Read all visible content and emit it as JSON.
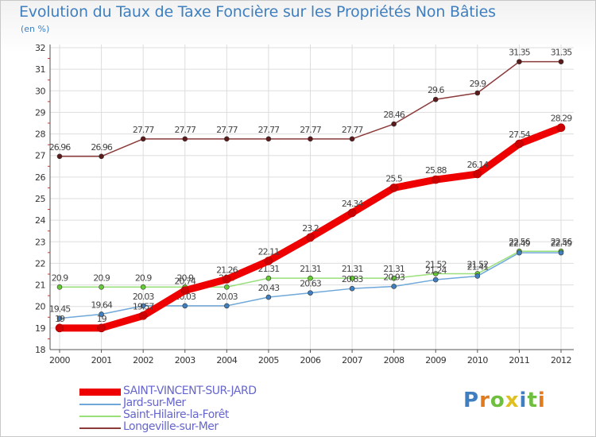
{
  "title": "Evolution du Taux de Taxe Foncière sur les Propriétés Non Bâties",
  "unit_label": "(en %)",
  "logo_text": "Proxiti",
  "colors": {
    "title": "#3f7fbf",
    "grid": "#dddddd",
    "axis": "#555555"
  },
  "chart_data": {
    "type": "line",
    "title": "Evolution du Taux de Taxe Foncière sur les Propriétés Non Bâties",
    "ylabel": "(en %)",
    "xlabel": "",
    "ylim": [
      18,
      32
    ],
    "yticks": [
      18,
      19,
      20,
      21,
      22,
      23,
      24,
      25,
      26,
      27,
      28,
      29,
      30,
      31,
      32
    ],
    "categories": [
      "2000",
      "2001",
      "2002",
      "2003",
      "2004",
      "2005",
      "2006",
      "2007",
      "2008",
      "2009",
      "2010",
      "2011",
      "2012"
    ],
    "legend_position": "bottom-left",
    "grid": true,
    "series": [
      {
        "name": "SAINT-VINCENT-SUR-JARD",
        "color": "#ee0000",
        "marker": "#cc0000",
        "width": 9,
        "values": [
          19,
          19,
          19.57,
          20.74,
          21.26,
          22.11,
          23.2,
          24.34,
          25.5,
          25.88,
          26.14,
          27.54,
          28.29
        ],
        "labels": [
          "19",
          "19",
          "19.57",
          "20.74",
          "21.26",
          "22.11",
          "23.2",
          "24.34",
          "25.5",
          "25.88",
          "26.14",
          "27.54",
          "28.29"
        ]
      },
      {
        "name": "Jard-sur-Mer",
        "color": "#6fa8d8",
        "marker": "#3f7fbf",
        "width": 1.5,
        "values": [
          19.45,
          19.64,
          20.03,
          20.03,
          20.03,
          20.43,
          20.63,
          20.83,
          20.93,
          21.24,
          21.41,
          22.49,
          22.49
        ],
        "labels": [
          "19.45",
          "19.64",
          "20.03",
          "20.03",
          "20.03",
          "20.43",
          "20.63",
          "20.83",
          "20.93",
          "21.24",
          "21.41",
          "22.49",
          "22.49"
        ]
      },
      {
        "name": "Saint-Hilaire-la-Forêt",
        "color": "#99e07a",
        "marker": "#66cc33",
        "width": 1.5,
        "values": [
          20.9,
          20.9,
          20.9,
          20.9,
          20.9,
          21.31,
          21.31,
          21.31,
          21.31,
          21.52,
          21.52,
          22.56,
          22.56
        ],
        "labels": [
          "20.9",
          "20.9",
          "20.9",
          "20.9",
          "20.9",
          "21.31",
          "21.31",
          "21.31",
          "21.31",
          "21.52",
          "21.52",
          "22.56",
          "22.56"
        ]
      },
      {
        "name": "Longeville-sur-Mer",
        "color": "#8b3a3a",
        "marker": "#5c1a1a",
        "width": 1.5,
        "values": [
          26.96,
          26.96,
          27.77,
          27.77,
          27.77,
          27.77,
          27.77,
          27.77,
          28.46,
          29.6,
          29.9,
          31.35,
          31.35
        ],
        "labels": [
          "26.96",
          "26.96",
          "27.77",
          "27.77",
          "27.77",
          "27.77",
          "27.77",
          "27.77",
          "28.46",
          "29.6",
          "29.9",
          "31.35",
          "31.35"
        ]
      }
    ]
  }
}
